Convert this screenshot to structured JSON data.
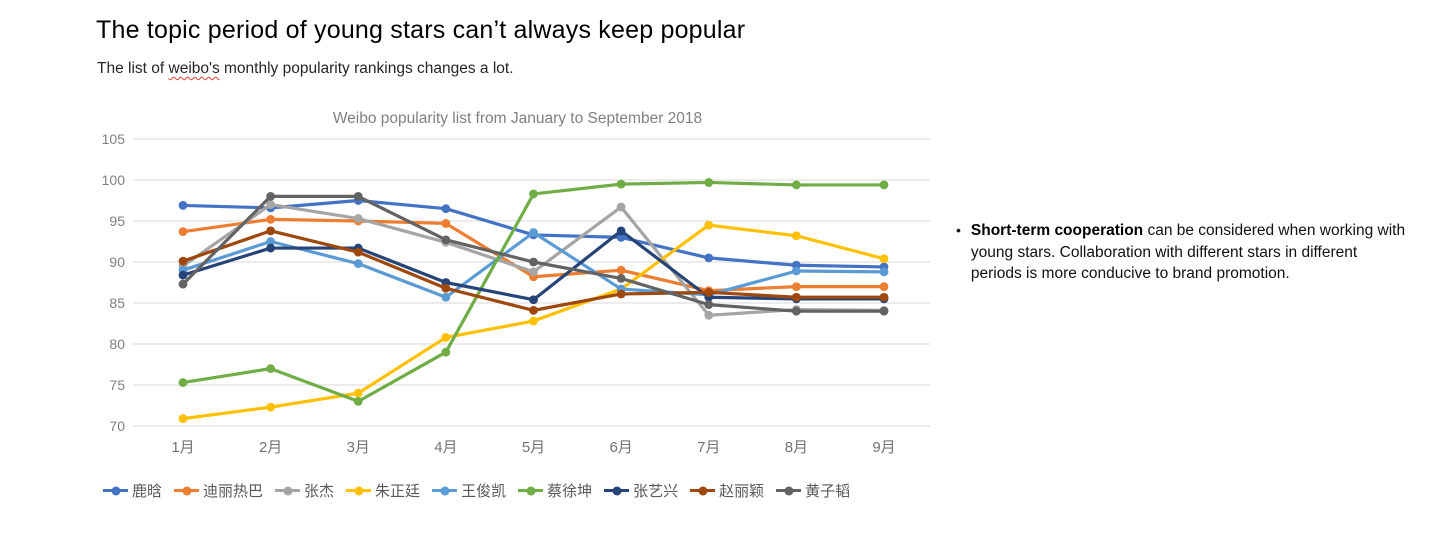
{
  "header": {
    "title": "The topic period of young stars can’t always keep popular",
    "subtitle_prefix": "The list of ",
    "subtitle_misspelled": "weibo's",
    "subtitle_suffix": " monthly popularity rankings changes a lot."
  },
  "chart_data": {
    "type": "line",
    "title": "Weibo popularity list from January to September 2018",
    "categories": [
      "1月",
      "2月",
      "3月",
      "4月",
      "5月",
      "6月",
      "7月",
      "8月",
      "9月"
    ],
    "series": [
      {
        "name": "鹿晗",
        "color": "#4472C4",
        "values": [
          96.9,
          96.6,
          97.5,
          96.5,
          93.3,
          93.0,
          90.5,
          89.6,
          89.4
        ]
      },
      {
        "name": "迪丽热巴",
        "color": "#ED7D31",
        "values": [
          93.7,
          95.2,
          95.0,
          94.7,
          88.2,
          89.0,
          86.5,
          87.0,
          87.0
        ]
      },
      {
        "name": "张杰",
        "color": "#A5A5A5",
        "values": [
          89.5,
          97.0,
          95.3,
          92.4,
          88.8,
          96.7,
          83.5,
          84.2,
          84.1
        ]
      },
      {
        "name": "朱正廷",
        "color": "#FFC000",
        "values": [
          70.9,
          72.3,
          74.0,
          80.8,
          82.8,
          86.7,
          94.5,
          93.2,
          90.4
        ]
      },
      {
        "name": "王俊凯",
        "color": "#5B9BD5",
        "values": [
          89.0,
          92.5,
          89.8,
          85.7,
          93.6,
          86.7,
          86.0,
          88.9,
          88.8
        ]
      },
      {
        "name": "蔡徐坤",
        "color": "#70AD47",
        "values": [
          75.3,
          77.0,
          73.0,
          79.0,
          98.3,
          99.5,
          99.7,
          99.4,
          99.4
        ]
      },
      {
        "name": "张艺兴",
        "color": "#264478",
        "values": [
          88.4,
          91.7,
          91.7,
          87.5,
          85.4,
          93.8,
          85.7,
          85.5,
          85.5
        ]
      },
      {
        "name": "赵丽颖",
        "color": "#9E480E",
        "values": [
          90.1,
          93.8,
          91.2,
          86.8,
          84.1,
          86.1,
          86.3,
          85.7,
          85.7
        ]
      },
      {
        "name": "黄子韬",
        "color": "#636363",
        "values": [
          87.3,
          98.0,
          98.0,
          92.7,
          90.0,
          88.0,
          84.8,
          84.0,
          84.0
        ]
      }
    ],
    "xlabel": "",
    "ylabel": "",
    "ylim": [
      70,
      105
    ],
    "ytick_step": 5,
    "yticks": [
      70,
      75,
      80,
      85,
      90,
      95,
      100,
      105
    ],
    "grid": true,
    "legend_position": "bottom",
    "grid_color": "#d9d9d9",
    "tick_label_color": "#7f7f7f",
    "xtick_label_color": "#737373"
  },
  "note": {
    "bullet": "•",
    "bold": "Short-term cooperation",
    "rest": "can be considered when working with young stars. Collaboration with different stars in different periods is more conducive to brand promotion."
  }
}
